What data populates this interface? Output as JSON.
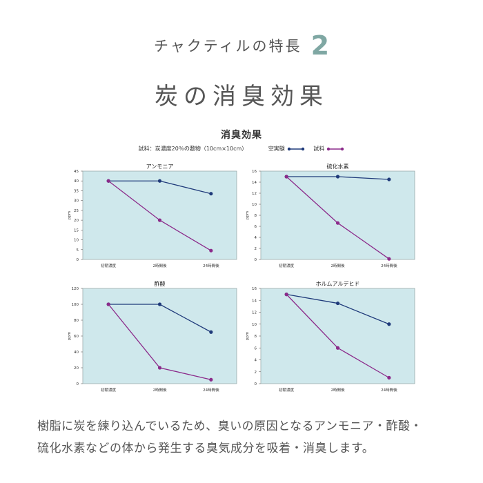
{
  "header": {
    "feature_label": "チャクティルの特長",
    "feature_number": "2",
    "title": "炭の消臭効果"
  },
  "panel": {
    "title": "消臭効果",
    "sample_note": "試料：炭濃度20％の敷物（10cm×10cm）",
    "legend": [
      {
        "name": "空実験",
        "color": "#1f3a7a"
      },
      {
        "name": "試料",
        "color": "#8b2a8a"
      }
    ]
  },
  "chart_data": [
    {
      "type": "line",
      "title": "アンモニア",
      "ylabel": "ppm",
      "categories": [
        "初期濃度",
        "2時間後",
        "24時間後"
      ],
      "ylim": [
        0,
        45
      ],
      "yticks": [
        0,
        5,
        10,
        15,
        20,
        25,
        30,
        35,
        40,
        45
      ],
      "series": [
        {
          "name": "空実験",
          "values": [
            40,
            40,
            33.5
          ]
        },
        {
          "name": "試料",
          "values": [
            40,
            20,
            4.5
          ]
        }
      ]
    },
    {
      "type": "line",
      "title": "硫化水素",
      "ylabel": "ppm",
      "categories": [
        "初期濃度",
        "2時間後",
        "24時間後"
      ],
      "ylim": [
        0,
        16
      ],
      "yticks": [
        0,
        2,
        4,
        6,
        8,
        10,
        12,
        14,
        16
      ],
      "series": [
        {
          "name": "空実験",
          "values": [
            15,
            15,
            14.5
          ]
        },
        {
          "name": "試料",
          "values": [
            15,
            6.6,
            0.1
          ]
        }
      ]
    },
    {
      "type": "line",
      "title": "酢酸",
      "ylabel": "ppm",
      "categories": [
        "初期濃度",
        "2時間後",
        "24時間後"
      ],
      "ylim": [
        0,
        120
      ],
      "yticks": [
        0,
        20,
        40,
        60,
        80,
        100,
        120
      ],
      "series": [
        {
          "name": "空実験",
          "values": [
            100,
            100,
            65
          ]
        },
        {
          "name": "試料",
          "values": [
            100,
            20,
            5
          ]
        }
      ]
    },
    {
      "type": "line",
      "title": "ホルムアルデヒド",
      "ylabel": "ppm",
      "categories": [
        "初期濃度",
        "2時間後",
        "24時間後"
      ],
      "ylim": [
        0,
        16
      ],
      "yticks": [
        0,
        2,
        4,
        6,
        8,
        10,
        12,
        14,
        16
      ],
      "series": [
        {
          "name": "空実験",
          "values": [
            15,
            13.5,
            10
          ]
        },
        {
          "name": "試料",
          "values": [
            15,
            6,
            1
          ]
        }
      ]
    }
  ],
  "description": {
    "line1": "樹脂に炭を練り込んでいるため、臭いの原因となるアンモニア・酢酸・",
    "line2": "硫化水素などの体から発生する臭気成分を吸着・消臭します。"
  }
}
